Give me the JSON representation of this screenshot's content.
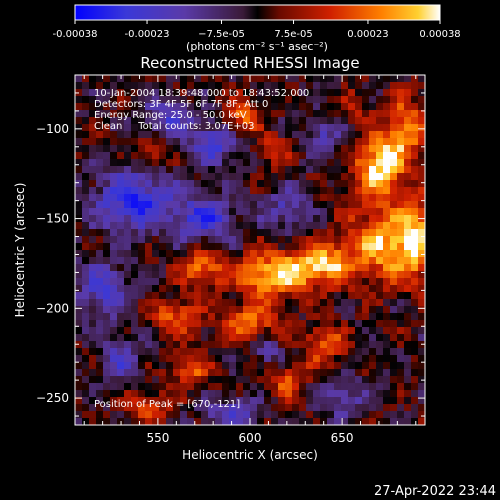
{
  "chart_data": {
    "type": "heatmap",
    "title": "Reconstructed RHESSI Image",
    "xlabel": "Heliocentric X (arcsec)",
    "ylabel": "Heliocentric Y (arcsec)",
    "xlim": [
      505,
      695
    ],
    "ylim": [
      -265,
      -70
    ],
    "xticks": [
      550,
      600,
      650
    ],
    "yticks": [
      -100,
      -150,
      -200,
      -250
    ],
    "colorbar": {
      "range": [
        -0.00038,
        0.00038
      ],
      "tick_values": [
        -0.00038,
        -0.00023,
        -7.5e-05,
        7.5e-05,
        0.00023,
        0.00038
      ],
      "tick_labels": [
        "-0.00038",
        "-0.00023",
        "−7.5e-05",
        "7.5e-05",
        "0.00023",
        "0.00038"
      ],
      "units_label": "(photons cm⁻² s⁻¹ asec⁻²)"
    },
    "info_lines": [
      "10-Jan-2004 18:39:48.000 to 18:43:52.000",
      "Detectors: 3F 4F 5F 6F 7F 8F, Att 0",
      "Energy Range: 25.0 - 50.0 keV",
      "Clean     Total counts: 3.07E+03"
    ],
    "peak_label": "Position of Peak = [670,-121]",
    "peak": {
      "x": 670,
      "y": -121,
      "value": 0.00038
    },
    "sources": [
      {
        "x": 670,
        "y": -121,
        "value": 0.00038,
        "sx": 9,
        "sy": 12
      },
      {
        "x": 672,
        "y": -165,
        "value": 0.0003,
        "sx": 14,
        "sy": 14
      },
      {
        "x": 685,
        "y": -100,
        "value": 0.00025,
        "sx": 8,
        "sy": 12
      },
      {
        "x": 690,
        "y": -160,
        "value": 0.00026,
        "sx": 7,
        "sy": 16
      },
      {
        "x": 628,
        "y": -178,
        "value": 0.00032,
        "sx": 9,
        "sy": 8
      },
      {
        "x": 608,
        "y": -182,
        "value": 0.0003,
        "sx": 10,
        "sy": 9
      },
      {
        "x": 645,
        "y": -175,
        "value": 0.00024,
        "sx": 8,
        "sy": 8
      },
      {
        "x": 575,
        "y": -178,
        "value": 0.00025,
        "sx": 9,
        "sy": 8
      },
      {
        "x": 560,
        "y": -205,
        "value": 0.00022,
        "sx": 9,
        "sy": 7
      },
      {
        "x": 600,
        "y": -208,
        "value": 0.00022,
        "sx": 11,
        "sy": 7
      },
      {
        "x": 640,
        "y": -220,
        "value": 0.00022,
        "sx": 8,
        "sy": 8
      },
      {
        "x": 620,
        "y": -240,
        "value": 0.00018,
        "sx": 8,
        "sy": 7
      },
      {
        "x": 595,
        "y": -95,
        "value": 0.00024,
        "sx": 6,
        "sy": 8
      },
      {
        "x": 612,
        "y": -112,
        "value": 0.00018,
        "sx": 6,
        "sy": 6
      },
      {
        "x": 548,
        "y": -112,
        "value": 0.00016,
        "sx": 6,
        "sy": 6
      },
      {
        "x": 657,
        "y": -88,
        "value": 0.00012,
        "sx": 6,
        "sy": 6
      },
      {
        "x": 568,
        "y": -235,
        "value": 0.00018,
        "sx": 8,
        "sy": 7
      },
      {
        "x": 545,
        "y": -255,
        "value": 0.00016,
        "sx": 8,
        "sy": 6
      },
      {
        "x": 537,
        "y": -140,
        "value": -0.0003,
        "sx": 15,
        "sy": 12
      },
      {
        "x": 576,
        "y": -150,
        "value": -0.00026,
        "sx": 12,
        "sy": 9
      },
      {
        "x": 582,
        "y": -108,
        "value": -0.00024,
        "sx": 10,
        "sy": 8
      },
      {
        "x": 555,
        "y": -95,
        "value": -0.0002,
        "sx": 10,
        "sy": 8
      },
      {
        "x": 520,
        "y": -190,
        "value": -0.00022,
        "sx": 10,
        "sy": 12
      },
      {
        "x": 620,
        "y": -145,
        "value": -0.00018,
        "sx": 8,
        "sy": 8
      },
      {
        "x": 640,
        "y": -105,
        "value": -0.00018,
        "sx": 7,
        "sy": 8
      },
      {
        "x": 650,
        "y": -250,
        "value": -0.00018,
        "sx": 9,
        "sy": 7
      },
      {
        "x": 590,
        "y": -258,
        "value": -0.0002,
        "sx": 11,
        "sy": 6
      },
      {
        "x": 610,
        "y": -225,
        "value": -0.00015,
        "sx": 6,
        "sy": 6
      },
      {
        "x": 530,
        "y": -228,
        "value": -0.00018,
        "sx": 8,
        "sy": 8
      }
    ]
  },
  "footer": {
    "timestamp": "27-Apr-2022 23:44"
  }
}
